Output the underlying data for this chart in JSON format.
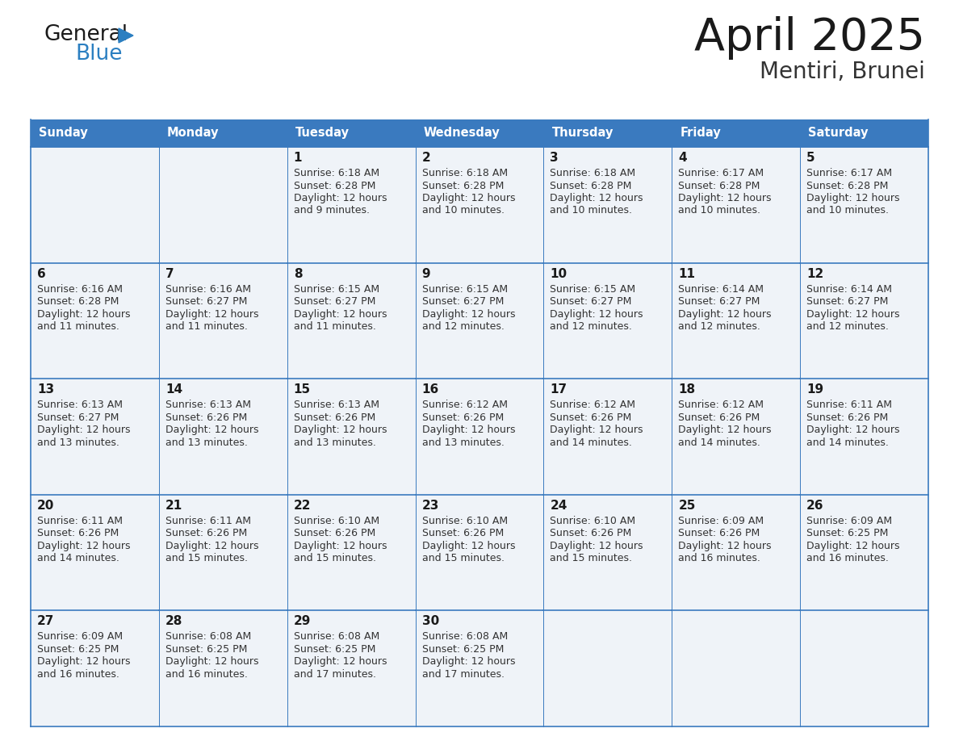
{
  "title": "April 2025",
  "subtitle": "Mentiri, Brunei",
  "header_color": "#3a7abf",
  "header_text_color": "#ffffff",
  "cell_bg_color": "#eff3f8",
  "border_color": "#3a7abf",
  "day_headers": [
    "Sunday",
    "Monday",
    "Tuesday",
    "Wednesday",
    "Thursday",
    "Friday",
    "Saturday"
  ],
  "title_color": "#1a1a1a",
  "subtitle_color": "#333333",
  "day_number_color": "#1a1a1a",
  "cell_text_color": "#333333",
  "logo_text_color": "#1a1a1a",
  "logo_blue_color": "#2b7fc1",
  "calendar_data": [
    [
      {
        "day": "",
        "sunrise": "",
        "sunset": "",
        "daylight": ""
      },
      {
        "day": "",
        "sunrise": "",
        "sunset": "",
        "daylight": ""
      },
      {
        "day": "1",
        "sunrise": "6:18 AM",
        "sunset": "6:28 PM",
        "daylight": "12 hours and 9 minutes."
      },
      {
        "day": "2",
        "sunrise": "6:18 AM",
        "sunset": "6:28 PM",
        "daylight": "12 hours and 10 minutes."
      },
      {
        "day": "3",
        "sunrise": "6:18 AM",
        "sunset": "6:28 PM",
        "daylight": "12 hours and 10 minutes."
      },
      {
        "day": "4",
        "sunrise": "6:17 AM",
        "sunset": "6:28 PM",
        "daylight": "12 hours and 10 minutes."
      },
      {
        "day": "5",
        "sunrise": "6:17 AM",
        "sunset": "6:28 PM",
        "daylight": "12 hours and 10 minutes."
      }
    ],
    [
      {
        "day": "6",
        "sunrise": "6:16 AM",
        "sunset": "6:28 PM",
        "daylight": "12 hours and 11 minutes."
      },
      {
        "day": "7",
        "sunrise": "6:16 AM",
        "sunset": "6:27 PM",
        "daylight": "12 hours and 11 minutes."
      },
      {
        "day": "8",
        "sunrise": "6:15 AM",
        "sunset": "6:27 PM",
        "daylight": "12 hours and 11 minutes."
      },
      {
        "day": "9",
        "sunrise": "6:15 AM",
        "sunset": "6:27 PM",
        "daylight": "12 hours and 12 minutes."
      },
      {
        "day": "10",
        "sunrise": "6:15 AM",
        "sunset": "6:27 PM",
        "daylight": "12 hours and 12 minutes."
      },
      {
        "day": "11",
        "sunrise": "6:14 AM",
        "sunset": "6:27 PM",
        "daylight": "12 hours and 12 minutes."
      },
      {
        "day": "12",
        "sunrise": "6:14 AM",
        "sunset": "6:27 PM",
        "daylight": "12 hours and 12 minutes."
      }
    ],
    [
      {
        "day": "13",
        "sunrise": "6:13 AM",
        "sunset": "6:27 PM",
        "daylight": "12 hours and 13 minutes."
      },
      {
        "day": "14",
        "sunrise": "6:13 AM",
        "sunset": "6:26 PM",
        "daylight": "12 hours and 13 minutes."
      },
      {
        "day": "15",
        "sunrise": "6:13 AM",
        "sunset": "6:26 PM",
        "daylight": "12 hours and 13 minutes."
      },
      {
        "day": "16",
        "sunrise": "6:12 AM",
        "sunset": "6:26 PM",
        "daylight": "12 hours and 13 minutes."
      },
      {
        "day": "17",
        "sunrise": "6:12 AM",
        "sunset": "6:26 PM",
        "daylight": "12 hours and 14 minutes."
      },
      {
        "day": "18",
        "sunrise": "6:12 AM",
        "sunset": "6:26 PM",
        "daylight": "12 hours and 14 minutes."
      },
      {
        "day": "19",
        "sunrise": "6:11 AM",
        "sunset": "6:26 PM",
        "daylight": "12 hours and 14 minutes."
      }
    ],
    [
      {
        "day": "20",
        "sunrise": "6:11 AM",
        "sunset": "6:26 PM",
        "daylight": "12 hours and 14 minutes."
      },
      {
        "day": "21",
        "sunrise": "6:11 AM",
        "sunset": "6:26 PM",
        "daylight": "12 hours and 15 minutes."
      },
      {
        "day": "22",
        "sunrise": "6:10 AM",
        "sunset": "6:26 PM",
        "daylight": "12 hours and 15 minutes."
      },
      {
        "day": "23",
        "sunrise": "6:10 AM",
        "sunset": "6:26 PM",
        "daylight": "12 hours and 15 minutes."
      },
      {
        "day": "24",
        "sunrise": "6:10 AM",
        "sunset": "6:26 PM",
        "daylight": "12 hours and 15 minutes."
      },
      {
        "day": "25",
        "sunrise": "6:09 AM",
        "sunset": "6:26 PM",
        "daylight": "12 hours and 16 minutes."
      },
      {
        "day": "26",
        "sunrise": "6:09 AM",
        "sunset": "6:25 PM",
        "daylight": "12 hours and 16 minutes."
      }
    ],
    [
      {
        "day": "27",
        "sunrise": "6:09 AM",
        "sunset": "6:25 PM",
        "daylight": "12 hours and 16 minutes."
      },
      {
        "day": "28",
        "sunrise": "6:08 AM",
        "sunset": "6:25 PM",
        "daylight": "12 hours and 16 minutes."
      },
      {
        "day": "29",
        "sunrise": "6:08 AM",
        "sunset": "6:25 PM",
        "daylight": "12 hours and 17 minutes."
      },
      {
        "day": "30",
        "sunrise": "6:08 AM",
        "sunset": "6:25 PM",
        "daylight": "12 hours and 17 minutes."
      },
      {
        "day": "",
        "sunrise": "",
        "sunset": "",
        "daylight": ""
      },
      {
        "day": "",
        "sunrise": "",
        "sunset": "",
        "daylight": ""
      },
      {
        "day": "",
        "sunrise": "",
        "sunset": "",
        "daylight": ""
      }
    ]
  ]
}
